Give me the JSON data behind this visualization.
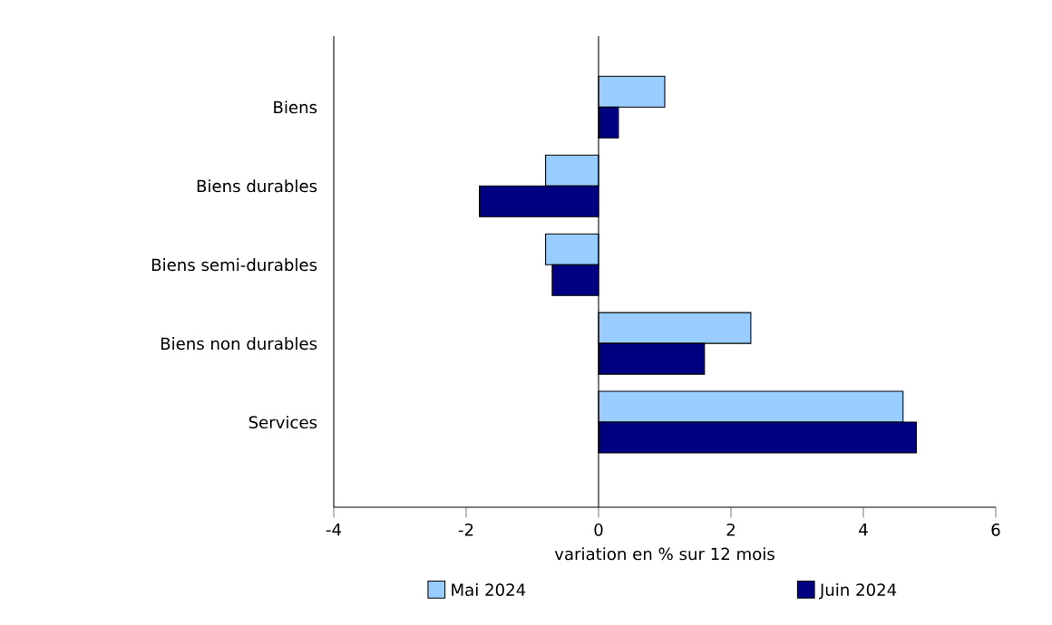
{
  "chart_data": {
    "type": "bar",
    "orientation": "horizontal",
    "categories": [
      "Biens",
      "Biens durables",
      "Biens semi-durables",
      "Biens non durables",
      "Services"
    ],
    "series": [
      {
        "name": "Mai 2024",
        "color": "#99ccff",
        "values": [
          1.0,
          -0.8,
          -0.8,
          2.3,
          4.6
        ]
      },
      {
        "name": "Juin 2024",
        "color": "#000080",
        "values": [
          0.3,
          -1.8,
          -0.7,
          1.6,
          4.8
        ]
      }
    ],
    "xlabel": "variation en % sur 12 mois",
    "xlim": [
      -4,
      6
    ],
    "xticks": [
      -4,
      -2,
      0,
      2,
      4,
      6
    ],
    "ref_lines": [
      {
        "axis": "x",
        "value": 0
      }
    ],
    "legend": "bottom"
  }
}
